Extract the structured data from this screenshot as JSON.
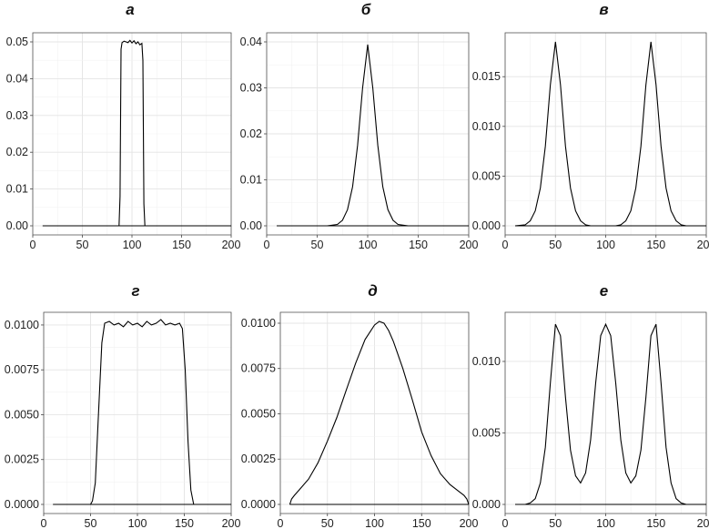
{
  "chart_data": [
    {
      "panel": "a",
      "title": "а",
      "type": "line",
      "x": [
        10,
        85,
        87,
        88,
        89,
        90,
        92,
        94,
        96,
        98,
        100,
        102,
        104,
        106,
        108,
        110,
        111,
        112,
        113,
        115,
        200
      ],
      "y": [
        0,
        0,
        0,
        0.008,
        0.048,
        0.0498,
        0.0502,
        0.05,
        0.0498,
        0.0504,
        0.0497,
        0.0503,
        0.0495,
        0.05,
        0.0492,
        0.0496,
        0.045,
        0.006,
        0,
        0,
        0
      ],
      "xlim": [
        0,
        200
      ],
      "xticks": [
        0,
        50,
        100,
        150,
        200
      ],
      "ylim": [
        0,
        0.05
      ],
      "yticks": [
        0.0,
        0.01,
        0.02,
        0.03,
        0.04,
        0.05
      ],
      "ytick_labels": [
        "0.00",
        "0.01",
        "0.02",
        "0.03",
        "0.04",
        "0.05"
      ]
    },
    {
      "panel": "b",
      "title": "б",
      "type": "line",
      "x": [
        10,
        60,
        70,
        75,
        80,
        85,
        90,
        95,
        100,
        105,
        110,
        115,
        120,
        125,
        130,
        140,
        200
      ],
      "y": [
        0,
        0,
        0.0003,
        0.0012,
        0.0035,
        0.0085,
        0.0175,
        0.03,
        0.0394,
        0.03,
        0.0175,
        0.0085,
        0.0035,
        0.0012,
        0.0003,
        0,
        0
      ],
      "xlim": [
        0,
        200
      ],
      "xticks": [
        0,
        50,
        100,
        150,
        200
      ],
      "ylim": [
        0,
        0.04
      ],
      "yticks": [
        0.0,
        0.01,
        0.02,
        0.03,
        0.04
      ],
      "ytick_labels": [
        "0.00",
        "0.01",
        "0.02",
        "0.03",
        "0.04"
      ]
    },
    {
      "panel": "v",
      "title": "в",
      "type": "line",
      "x": [
        10,
        20,
        25,
        30,
        35,
        40,
        45,
        50,
        55,
        60,
        65,
        70,
        75,
        80,
        85,
        90,
        95,
        100,
        105,
        110,
        115,
        120,
        125,
        130,
        135,
        140,
        145,
        150,
        155,
        160,
        165,
        170,
        175,
        180,
        185,
        200
      ],
      "y": [
        0,
        0.0001,
        0.0005,
        0.0015,
        0.0038,
        0.008,
        0.0142,
        0.0185,
        0.0142,
        0.008,
        0.0038,
        0.0015,
        0.0005,
        0.0001,
        0,
        0,
        0,
        0,
        0,
        0,
        0.0001,
        0.0005,
        0.0015,
        0.0038,
        0.008,
        0.0142,
        0.0185,
        0.0142,
        0.008,
        0.0038,
        0.0015,
        0.0005,
        0.0001,
        0,
        0,
        0
      ],
      "xlim": [
        0,
        200
      ],
      "xticks": [
        0,
        50,
        100,
        150,
        200
      ],
      "ylim": [
        0,
        0.0185
      ],
      "yticks": [
        0.0,
        0.005,
        0.01,
        0.015
      ],
      "ytick_labels": [
        "0.000",
        "0.005",
        "0.010",
        "0.015"
      ]
    },
    {
      "panel": "g",
      "title": "г",
      "type": "line",
      "x": [
        10,
        50,
        52,
        55,
        58,
        62,
        65,
        70,
        75,
        80,
        85,
        90,
        95,
        100,
        105,
        110,
        115,
        120,
        125,
        130,
        135,
        140,
        145,
        148,
        151,
        154,
        157,
        160,
        200
      ],
      "y": [
        0,
        0,
        0.0002,
        0.0012,
        0.0045,
        0.009,
        0.0101,
        0.0102,
        0.01,
        0.0101,
        0.0099,
        0.0102,
        0.01,
        0.0101,
        0.0099,
        0.0102,
        0.01,
        0.0101,
        0.0103,
        0.01,
        0.0101,
        0.01,
        0.0101,
        0.0098,
        0.0075,
        0.0035,
        0.0008,
        0,
        0
      ],
      "xlim": [
        0,
        200
      ],
      "xticks": [
        0,
        50,
        100,
        150,
        200
      ],
      "ylim": [
        0,
        0.0102
      ],
      "yticks": [
        0.0,
        0.0025,
        0.005,
        0.0075,
        0.01
      ],
      "ytick_labels": [
        "0.0000",
        "0.0025",
        "0.0050",
        "0.0075",
        "0.0100"
      ]
    },
    {
      "panel": "d",
      "title": "д",
      "type": "line",
      "x": [
        10,
        12,
        15,
        20,
        30,
        40,
        50,
        60,
        70,
        80,
        90,
        100,
        105,
        110,
        115,
        120,
        130,
        140,
        150,
        160,
        170,
        180,
        190,
        195,
        198,
        200
      ],
      "y": [
        0,
        0.0003,
        0.0005,
        0.0008,
        0.0014,
        0.0023,
        0.0035,
        0.0048,
        0.0063,
        0.0078,
        0.0091,
        0.0099,
        0.0101,
        0.01,
        0.0096,
        0.009,
        0.0075,
        0.0058,
        0.004,
        0.0027,
        0.0017,
        0.0011,
        0.0007,
        0.0005,
        0.0003,
        0
      ],
      "xlim": [
        0,
        200
      ],
      "xticks": [
        0,
        50,
        100,
        150,
        200
      ],
      "ylim": [
        0,
        0.0101
      ],
      "yticks": [
        0.0,
        0.0025,
        0.005,
        0.0075,
        0.01
      ],
      "ytick_labels": [
        "0.0000",
        "0.0025",
        "0.0050",
        "0.0075",
        "0.0100"
      ]
    },
    {
      "panel": "e",
      "title": "е",
      "type": "line",
      "x": [
        10,
        20,
        25,
        30,
        35,
        40,
        45,
        50,
        55,
        60,
        65,
        70,
        75,
        80,
        85,
        90,
        95,
        100,
        105,
        110,
        115,
        120,
        125,
        130,
        135,
        140,
        145,
        150,
        155,
        160,
        165,
        170,
        175,
        180,
        185,
        200
      ],
      "y": [
        0,
        0,
        0.0001,
        0.0004,
        0.0015,
        0.004,
        0.0085,
        0.0126,
        0.0118,
        0.0075,
        0.0038,
        0.002,
        0.0015,
        0.0022,
        0.0045,
        0.0085,
        0.0118,
        0.0126,
        0.0118,
        0.0085,
        0.0045,
        0.0022,
        0.0015,
        0.002,
        0.0038,
        0.0075,
        0.0118,
        0.0126,
        0.0085,
        0.004,
        0.0015,
        0.0004,
        0.0001,
        0,
        0,
        0
      ],
      "xlim": [
        0,
        200
      ],
      "xticks": [
        0,
        50,
        100,
        150,
        200
      ],
      "ylim": [
        0,
        0.0128
      ],
      "yticks": [
        0.0,
        0.005,
        0.01
      ],
      "ytick_labels": [
        "0.000",
        "0.005",
        "0.010"
      ]
    }
  ]
}
